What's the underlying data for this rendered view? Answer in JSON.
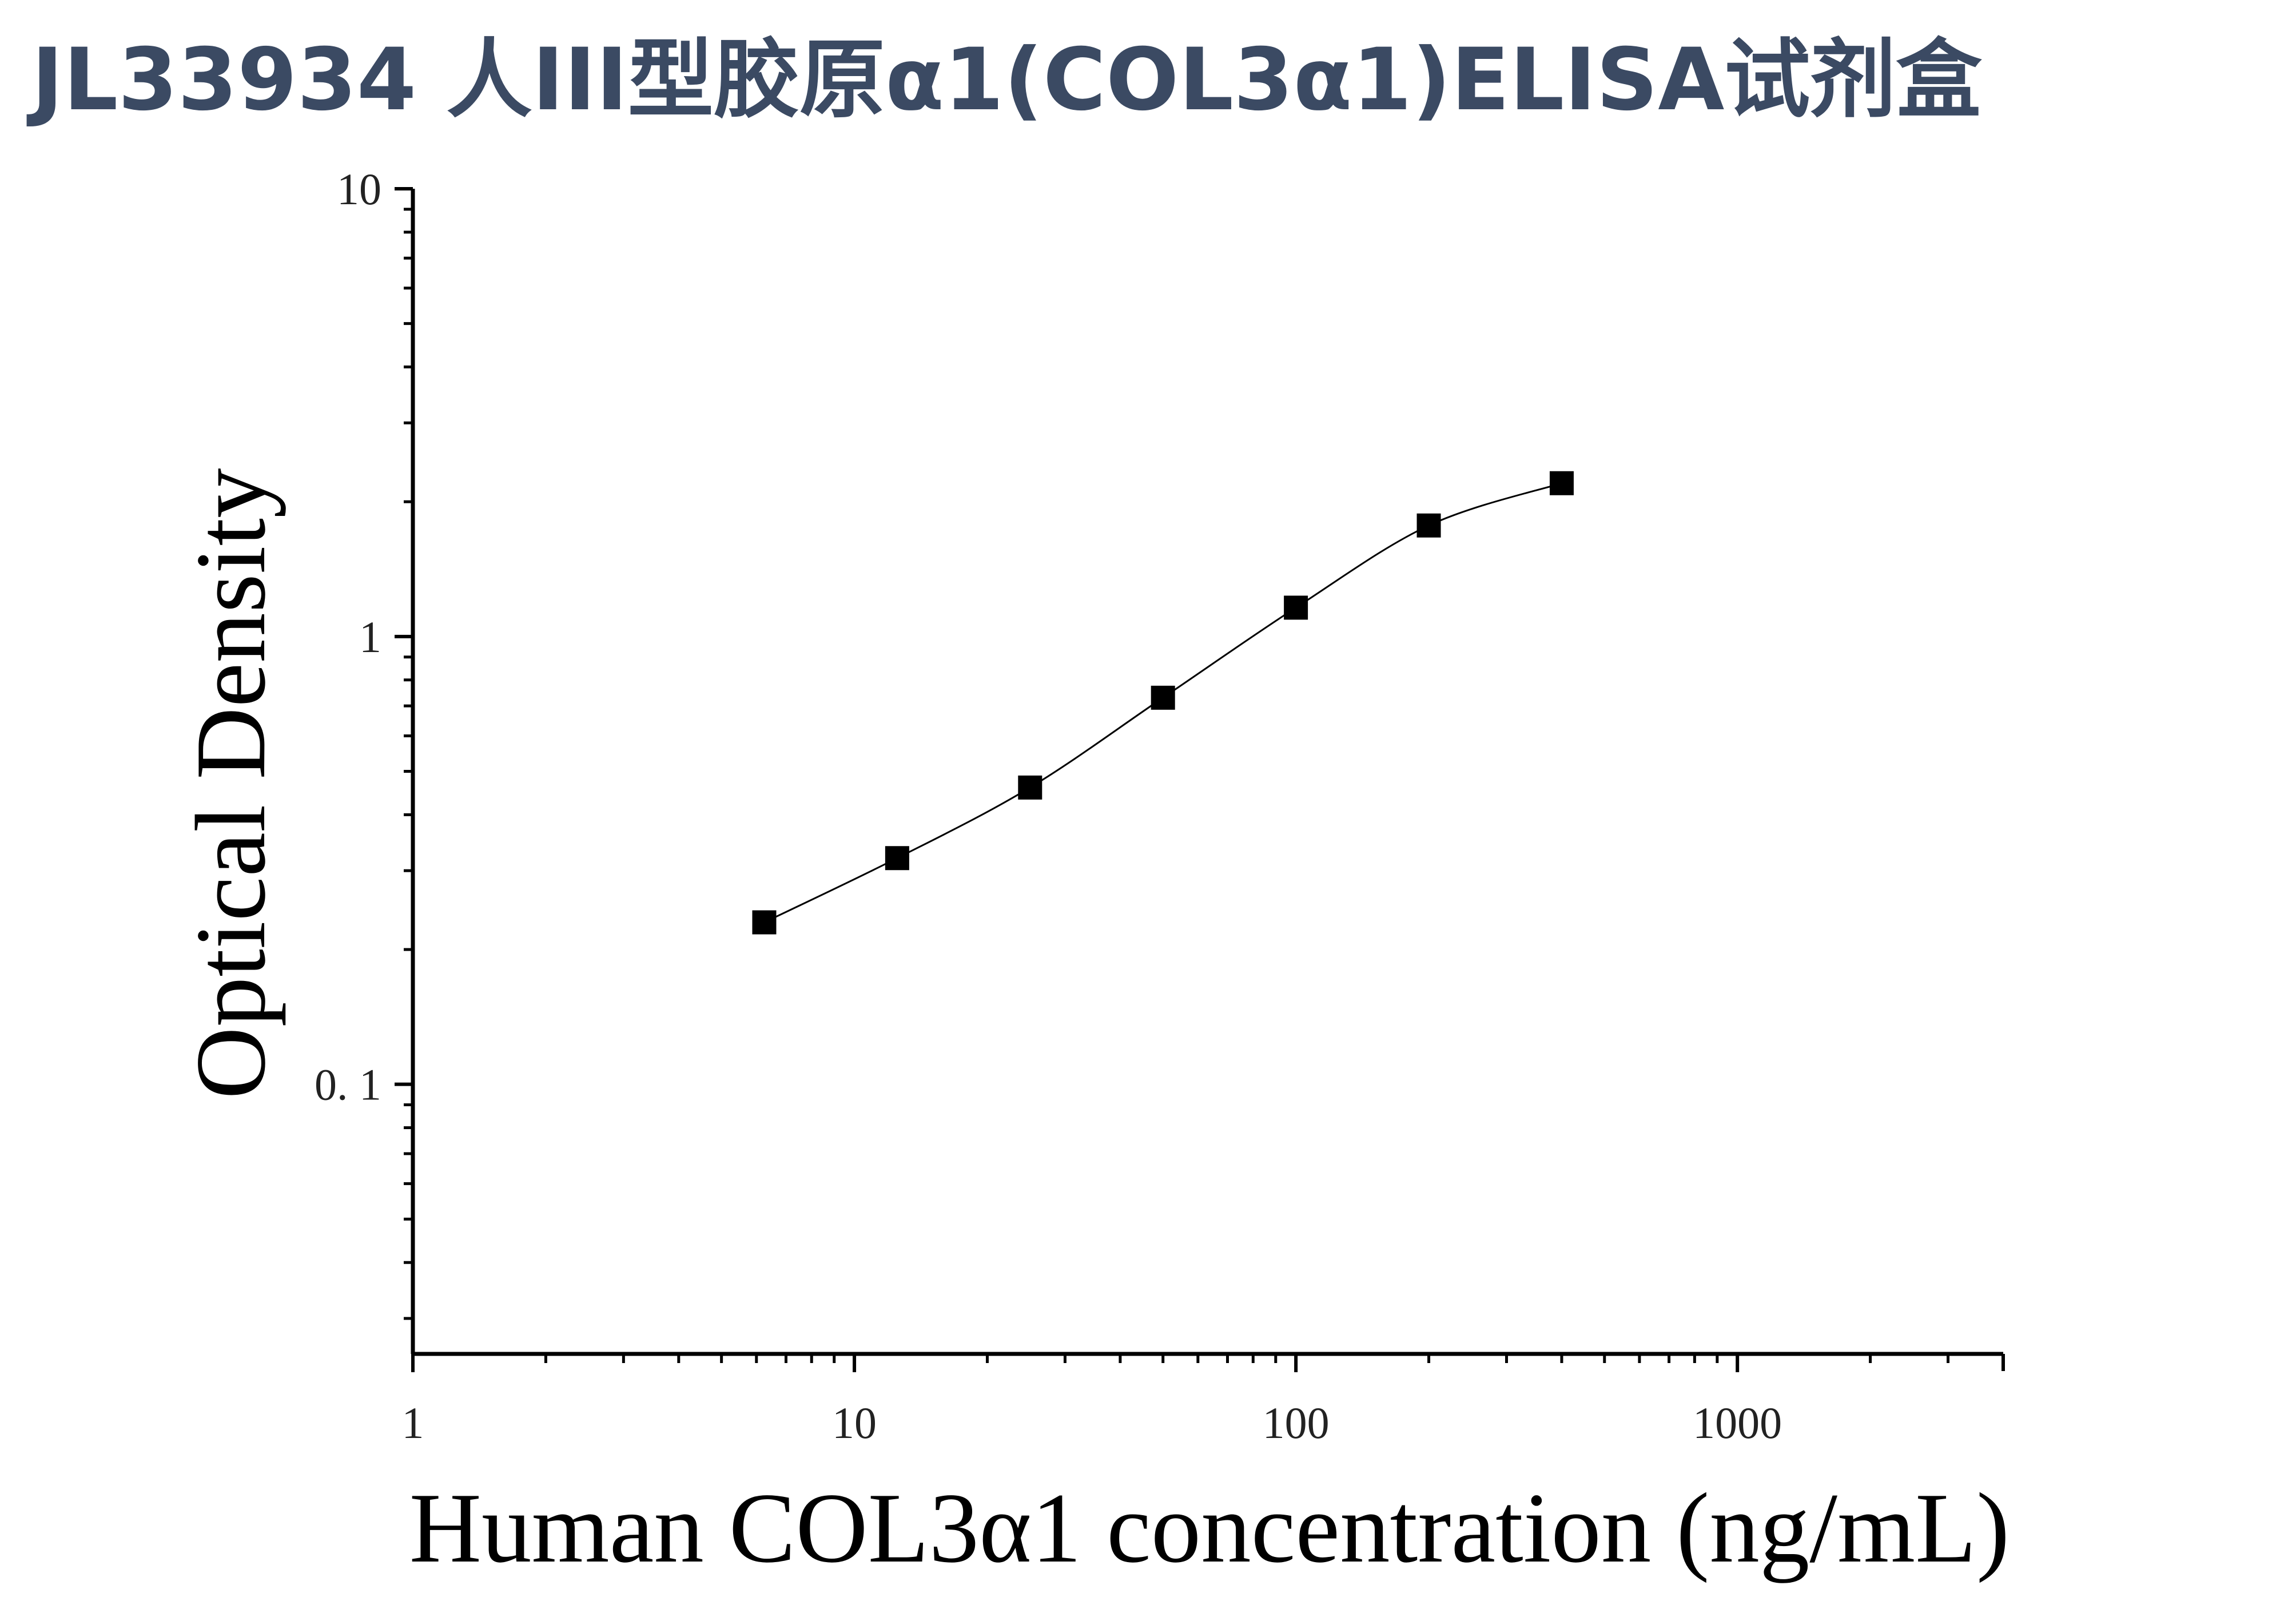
{
  "title": "JL33934 人III型胶原α1(COL3α1)ELISA试剂盒",
  "chart_data": {
    "type": "scatter",
    "title": "JL33934 人III型胶原α1(COL3α1)ELISA试剂盒",
    "xlabel": "Human COL3α1 concentration (ng/mL)",
    "ylabel": "Optical Density",
    "x_scale": "log",
    "y_scale": "log",
    "xlim": [
      1,
      4000
    ],
    "ylim": [
      0.025,
      10
    ],
    "x_ticks": [
      1,
      10,
      100,
      1000
    ],
    "x_tick_labels": [
      "1",
      "10",
      "100",
      "1000"
    ],
    "y_ticks": [
      0.1,
      1,
      10
    ],
    "y_tick_labels": [
      "0. 1",
      "1",
      "10"
    ],
    "grid": false,
    "legend": "none",
    "series": [
      {
        "marker": "square",
        "color": "#000000",
        "x": [
          6.25,
          12.5,
          25,
          50,
          100,
          200,
          400
        ],
        "y": [
          0.23,
          0.32,
          0.46,
          0.73,
          1.16,
          1.77,
          2.2
        ],
        "fit_curve": true
      }
    ]
  }
}
